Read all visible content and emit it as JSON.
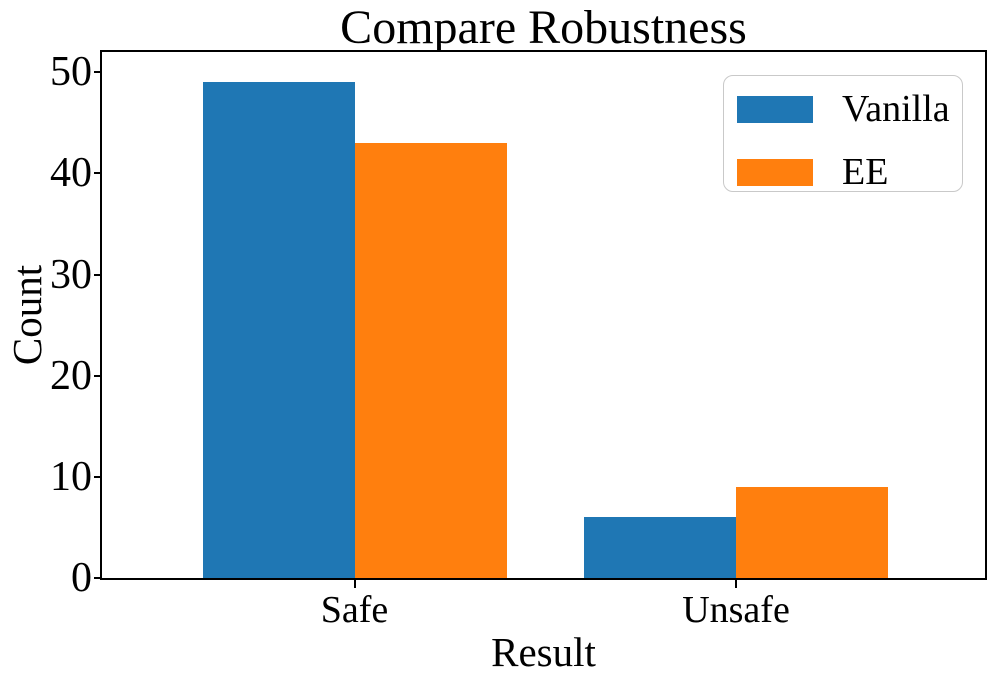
{
  "chart_data": {
    "type": "bar",
    "title": "Compare Robustness",
    "xlabel": "Result",
    "ylabel": "Count",
    "categories": [
      "Safe",
      "Unsafe"
    ],
    "series": [
      {
        "name": "Vanilla",
        "color": "#1f77b4",
        "values": [
          49,
          6
        ]
      },
      {
        "name": "EE",
        "color": "#ff7f0e",
        "values": [
          43,
          9
        ]
      }
    ],
    "yticks": [
      0,
      10,
      20,
      30,
      40,
      50
    ],
    "ylim": [
      0,
      52
    ],
    "grid": false,
    "legend": {
      "position": "upper right",
      "entries": [
        "Vanilla",
        "EE"
      ]
    },
    "colors": {
      "axis": "#000000",
      "legend_border": "#c9c9c9",
      "background": "#ffffff"
    }
  }
}
